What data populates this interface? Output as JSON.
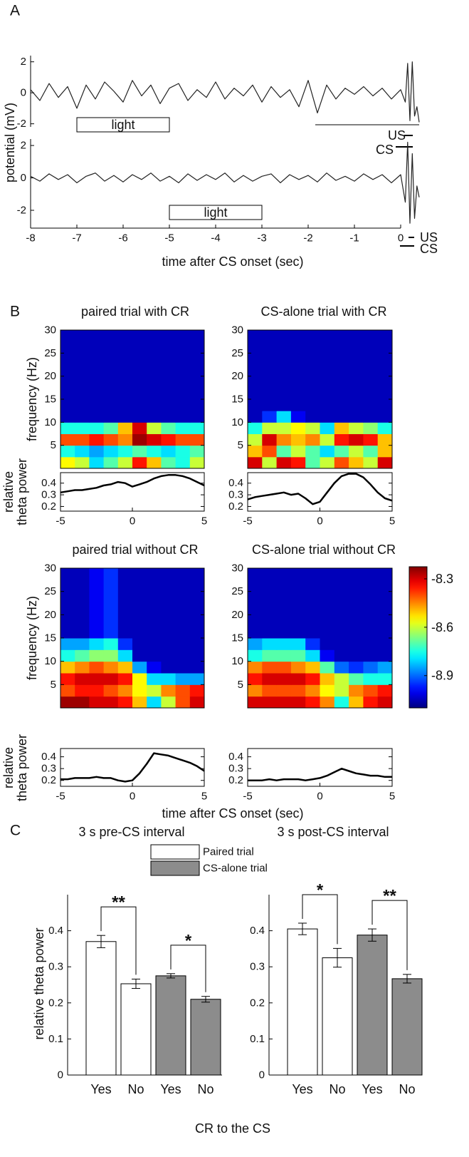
{
  "panel_labels": [
    "A",
    "B",
    "C"
  ],
  "chart_data": [
    {
      "type": "line",
      "ylabel": "potential (mV)",
      "x": [
        -8,
        -7.8,
        -7.6,
        -7.4,
        -7.2,
        -7,
        -6.8,
        -6.6,
        -6.4,
        -6.2,
        -6,
        -5.8,
        -5.6,
        -5.4,
        -5.2,
        -5,
        -4.8,
        -4.6,
        -4.4,
        -4.2,
        -4,
        -3.8,
        -3.6,
        -3.4,
        -3.2,
        -3,
        -2.8,
        -2.6,
        -2.4,
        -2.2,
        -2,
        -1.8,
        -1.6,
        -1.4,
        -1.2,
        -1,
        -0.8,
        -0.6,
        -0.4,
        -0.2,
        0,
        0.1,
        0.15,
        0.2,
        0.25,
        0.3,
        0.35,
        0.4
      ],
      "values": [
        0.2,
        -0.5,
        0.6,
        -0.3,
        0.4,
        -1.0,
        0.5,
        -0.4,
        0.7,
        0.1,
        -0.6,
        0.8,
        -0.2,
        0.5,
        -0.7,
        0.3,
        0.6,
        -0.5,
        0.2,
        -0.3,
        0.7,
        -0.4,
        0.3,
        -0.2,
        0.5,
        -0.6,
        0.4,
        -0.3,
        0.2,
        -0.9,
        0.8,
        -1.3,
        0.5,
        -0.4,
        0.3,
        -0.1,
        0.4,
        -0.2,
        0.3,
        -0.4,
        0.2,
        -0.6,
        1.9,
        -1.8,
        2.0,
        -1.5,
        -0.9,
        -1.9
      ],
      "color": "#222222",
      "xlim": [
        -8,
        0.4
      ],
      "ylim": [
        -2.2,
        2.4
      ],
      "yticks": [
        -2,
        0,
        2
      ],
      "stimulus": {
        "label": "light",
        "start": -7,
        "end": -5
      },
      "markers": [
        "US",
        "CS"
      ]
    },
    {
      "type": "line",
      "xlabel": "time after CS onset (sec)",
      "x": [
        -8,
        -7.8,
        -7.6,
        -7.4,
        -7.2,
        -7,
        -6.8,
        -6.6,
        -6.4,
        -6.2,
        -6,
        -5.8,
        -5.6,
        -5.4,
        -5.2,
        -5,
        -4.8,
        -4.6,
        -4.4,
        -4.2,
        -4,
        -3.8,
        -3.6,
        -3.4,
        -3.2,
        -3,
        -2.8,
        -2.6,
        -2.4,
        -2.2,
        -2,
        -1.8,
        -1.6,
        -1.4,
        -1.2,
        -1,
        -0.8,
        -0.6,
        -0.4,
        -0.2,
        0,
        0.1,
        0.15,
        0.2,
        0.25,
        0.3,
        0.35,
        0.4
      ],
      "values": [
        0.1,
        -0.2,
        0.25,
        -0.1,
        0.2,
        -0.3,
        0.1,
        0.3,
        -0.2,
        0.15,
        -0.25,
        0.2,
        -0.1,
        0.3,
        -0.2,
        0.1,
        -0.3,
        0.25,
        -0.15,
        0.2,
        -0.1,
        0.3,
        -0.25,
        0.15,
        -0.2,
        0.1,
        0.25,
        -0.3,
        0.2,
        -0.1,
        0.15,
        -0.25,
        0.3,
        -0.15,
        0.1,
        -0.2,
        0.25,
        -0.1,
        0.2,
        -0.3,
        0.2,
        -1.5,
        2.2,
        -2.8,
        1.5,
        -2.5,
        -0.5,
        -1.2
      ],
      "color": "#222222",
      "xlim": [
        -8,
        0.4
      ],
      "ylim": [
        -3.1,
        2.4
      ],
      "yticks": [
        -2,
        0,
        2
      ],
      "xticks": [
        -8,
        -7,
        -6,
        -5,
        -4,
        -3,
        -2,
        -1,
        0
      ],
      "stimulus": {
        "label": "light",
        "start": -5,
        "end": -3
      },
      "markers": [
        "US",
        "CS"
      ]
    },
    {
      "type": "heatmap",
      "title": "paired trial with CR",
      "ylabel": "frequency (Hz)",
      "xbins": [
        -5,
        -4,
        -3,
        -2,
        -1,
        0,
        1,
        2,
        3,
        4,
        5
      ],
      "ybins": [
        0,
        2.5,
        5,
        7.5,
        10,
        12.5,
        15,
        30
      ],
      "yticks": [
        5,
        10,
        15,
        20,
        25,
        30
      ],
      "values": [
        [
          -8.55,
          -8.6,
          -8.8,
          -8.7,
          -8.6,
          -8.35,
          -8.5,
          -8.7,
          -8.75,
          -8.6
        ],
        [
          -8.75,
          -8.8,
          -8.85,
          -8.8,
          -8.75,
          -8.7,
          -8.75,
          -8.8,
          -8.75,
          -8.7
        ],
        [
          -8.4,
          -8.4,
          -8.35,
          -8.4,
          -8.45,
          -8.25,
          -8.3,
          -8.35,
          -8.4,
          -8.4
        ],
        [
          -8.75,
          -8.75,
          -8.75,
          -8.7,
          -8.5,
          -8.3,
          -8.6,
          -8.7,
          -8.75,
          -8.75
        ],
        [
          -9.05,
          -9.05,
          -9.05,
          -9.05,
          -9.05,
          -9.05,
          -9.05,
          -9.05,
          -9.05,
          -9.05
        ],
        [
          -9.05,
          -9.05,
          -9.05,
          -9.05,
          -9.05,
          -9.05,
          -9.05,
          -9.05,
          -9.05,
          -9.05
        ],
        [
          -9.05,
          -9.05,
          -9.05,
          -9.05,
          -9.05,
          -9.05,
          -9.05,
          -9.05,
          -9.05,
          -9.05
        ]
      ]
    },
    {
      "type": "line",
      "ylabel": [
        "relative",
        "theta power"
      ],
      "x": [
        -5,
        -4.5,
        -4,
        -3.5,
        -3,
        -2.5,
        -2,
        -1.5,
        -1,
        -0.5,
        0,
        0.5,
        1,
        1.5,
        2,
        2.5,
        3,
        3.5,
        4,
        4.5,
        5
      ],
      "values": [
        0.32,
        0.33,
        0.34,
        0.34,
        0.35,
        0.36,
        0.38,
        0.39,
        0.41,
        0.4,
        0.37,
        0.39,
        0.41,
        0.44,
        0.46,
        0.47,
        0.47,
        0.46,
        0.44,
        0.41,
        0.38
      ],
      "color": "#000000",
      "xlim": [
        -5,
        5
      ],
      "xticks": [
        -5,
        0,
        5
      ],
      "ylim": [
        0.16,
        0.49
      ],
      "yticks": [
        0.2,
        0.3,
        0.4
      ]
    },
    {
      "type": "heatmap",
      "title": "CS-alone trial with CR",
      "xbins": [
        -5,
        -4,
        -3,
        -2,
        -1,
        0,
        1,
        2,
        3,
        4,
        5
      ],
      "ybins": [
        0,
        2.5,
        5,
        7.5,
        10,
        12.5,
        15,
        30
      ],
      "yticks": [
        5,
        10,
        15,
        20,
        25,
        30
      ],
      "values": [
        [
          -8.3,
          -8.6,
          -8.3,
          -8.35,
          -8.7,
          -8.6,
          -8.4,
          -8.5,
          -8.6,
          -8.3
        ],
        [
          -8.5,
          -8.4,
          -8.7,
          -8.6,
          -8.7,
          -8.8,
          -8.7,
          -8.6,
          -8.7,
          -8.5
        ],
        [
          -8.6,
          -8.3,
          -8.45,
          -8.5,
          -8.45,
          -8.6,
          -8.35,
          -8.3,
          -8.35,
          -8.5
        ],
        [
          -8.75,
          -8.6,
          -8.6,
          -8.55,
          -8.6,
          -8.8,
          -8.5,
          -8.6,
          -8.65,
          -8.75
        ],
        [
          -9.05,
          -8.95,
          -8.8,
          -9.0,
          -9.05,
          -9.05,
          -9.05,
          -9.05,
          -9.05,
          -9.05
        ],
        [
          -9.05,
          -9.05,
          -9.05,
          -9.05,
          -9.05,
          -9.05,
          -9.05,
          -9.05,
          -9.05,
          -9.05
        ],
        [
          -9.05,
          -9.05,
          -9.05,
          -9.05,
          -9.05,
          -9.05,
          -9.05,
          -9.05,
          -9.05,
          -9.05
        ]
      ]
    },
    {
      "type": "line",
      "x": [
        -5,
        -4.5,
        -4,
        -3.5,
        -3,
        -2.5,
        -2,
        -1.5,
        -1,
        -0.5,
        0,
        0.5,
        1,
        1.5,
        2,
        2.5,
        3,
        3.5,
        4,
        4.5,
        5
      ],
      "values": [
        0.26,
        0.28,
        0.29,
        0.3,
        0.31,
        0.32,
        0.3,
        0.31,
        0.27,
        0.22,
        0.24,
        0.32,
        0.4,
        0.46,
        0.48,
        0.48,
        0.45,
        0.39,
        0.32,
        0.27,
        0.25
      ],
      "color": "#000000",
      "xlim": [
        -5,
        5
      ],
      "xticks": [
        -5,
        0,
        5
      ],
      "ylim": [
        0.16,
        0.49
      ],
      "yticks": [
        0.2,
        0.3,
        0.4
      ]
    },
    {
      "type": "heatmap",
      "title": "paired trial without CR",
      "ylabel": "frequency (Hz)",
      "xbins": [
        -5,
        -4,
        -3,
        -2,
        -1,
        0,
        1,
        2,
        3,
        4,
        5
      ],
      "ybins": [
        0,
        2.5,
        5,
        7.5,
        10,
        12.5,
        15,
        30
      ],
      "yticks": [
        5,
        10,
        15,
        20,
        25,
        30
      ],
      "values": [
        [
          -8.25,
          -8.25,
          -8.3,
          -8.3,
          -8.35,
          -8.5,
          -8.8,
          -8.6,
          -8.4,
          -8.3
        ],
        [
          -8.4,
          -8.35,
          -8.35,
          -8.4,
          -8.45,
          -8.55,
          -8.6,
          -8.45,
          -8.4,
          -8.35
        ],
        [
          -8.35,
          -8.3,
          -8.3,
          -8.3,
          -8.35,
          -8.55,
          -8.8,
          -8.8,
          -8.85,
          -8.85
        ],
        [
          -8.5,
          -8.45,
          -8.4,
          -8.45,
          -8.5,
          -8.85,
          -9.0,
          -9.05,
          -9.05,
          -9.05
        ],
        [
          -8.75,
          -8.7,
          -8.65,
          -8.65,
          -8.8,
          -9.05,
          -9.05,
          -9.05,
          -9.05,
          -9.05
        ],
        [
          -8.85,
          -8.85,
          -8.8,
          -8.75,
          -8.95,
          -9.05,
          -9.05,
          -9.05,
          -9.05,
          -9.05
        ],
        [
          -9.05,
          -9.05,
          -9.0,
          -8.95,
          -9.05,
          -9.05,
          -9.05,
          -9.05,
          -9.05,
          -9.05
        ]
      ]
    },
    {
      "type": "line",
      "ylabel": [
        "relative",
        "theta power"
      ],
      "x": [
        -5,
        -4.5,
        -4,
        -3.5,
        -3,
        -2.5,
        -2,
        -1.5,
        -1,
        -0.5,
        0,
        0.5,
        1,
        1.5,
        2,
        2.5,
        3,
        3.5,
        4,
        4.5,
        5
      ],
      "values": [
        0.21,
        0.21,
        0.22,
        0.22,
        0.22,
        0.23,
        0.22,
        0.22,
        0.2,
        0.19,
        0.2,
        0.26,
        0.34,
        0.43,
        0.42,
        0.41,
        0.39,
        0.37,
        0.35,
        0.32,
        0.28
      ],
      "color": "#000000",
      "xlim": [
        -5,
        5
      ],
      "xticks": [
        -5,
        0,
        5
      ],
      "ylim": [
        0.15,
        0.47
      ],
      "yticks": [
        0.2,
        0.3,
        0.4
      ]
    },
    {
      "type": "heatmap",
      "title": "CS-alone trial without CR",
      "xbins": [
        -5,
        -4,
        -3,
        -2,
        -1,
        0,
        1,
        2,
        3,
        4,
        5
      ],
      "ybins": [
        0,
        2.5,
        5,
        7.5,
        10,
        12.5,
        15,
        30
      ],
      "yticks": [
        5,
        10,
        15,
        20,
        25,
        30
      ],
      "values": [
        [
          -8.3,
          -8.3,
          -8.3,
          -8.3,
          -8.35,
          -8.45,
          -8.75,
          -8.5,
          -8.35,
          -8.3
        ],
        [
          -8.45,
          -8.4,
          -8.4,
          -8.4,
          -8.45,
          -8.55,
          -8.6,
          -8.45,
          -8.4,
          -8.35
        ],
        [
          -8.35,
          -8.3,
          -8.3,
          -8.3,
          -8.35,
          -8.5,
          -8.6,
          -8.7,
          -8.75,
          -8.75
        ],
        [
          -8.45,
          -8.4,
          -8.4,
          -8.45,
          -8.5,
          -8.7,
          -8.9,
          -8.95,
          -8.9,
          -8.85
        ],
        [
          -8.75,
          -8.7,
          -8.7,
          -8.7,
          -8.8,
          -9.0,
          -9.05,
          -9.05,
          -9.05,
          -9.05
        ],
        [
          -8.85,
          -8.8,
          -8.8,
          -8.8,
          -8.95,
          -9.05,
          -9.05,
          -9.05,
          -9.05,
          -9.05
        ],
        [
          -9.05,
          -9.05,
          -9.05,
          -9.05,
          -9.05,
          -9.05,
          -9.05,
          -9.05,
          -9.05,
          -9.05
        ]
      ]
    },
    {
      "type": "line",
      "xlabel": "time after CS onset (sec)",
      "x": [
        -5,
        -4.5,
        -4,
        -3.5,
        -3,
        -2.5,
        -2,
        -1.5,
        -1,
        -0.5,
        0,
        0.5,
        1,
        1.5,
        2,
        2.5,
        3,
        3.5,
        4,
        4.5,
        5
      ],
      "values": [
        0.2,
        0.2,
        0.2,
        0.21,
        0.2,
        0.21,
        0.21,
        0.21,
        0.2,
        0.21,
        0.22,
        0.24,
        0.27,
        0.3,
        0.28,
        0.26,
        0.25,
        0.24,
        0.24,
        0.23,
        0.23
      ],
      "color": "#000000",
      "xlim": [
        -5,
        5
      ],
      "xticks": [
        -5,
        0,
        5
      ],
      "ylim": [
        0.15,
        0.47
      ],
      "yticks": [
        0.2,
        0.3,
        0.4
      ]
    },
    {
      "type": "colorbar",
      "colormap": "jet",
      "clim": [
        -9.1,
        -8.225
      ],
      "ticks": [
        -8.9,
        -8.6,
        -8.3
      ]
    },
    {
      "type": "bar",
      "title": "3 s pre-CS interval",
      "ylabel": "relative theta power",
      "categories": [
        "Yes",
        "No",
        "Yes",
        "No"
      ],
      "series": [
        {
          "name": "Paired trial",
          "color": "#ffffff",
          "values": [
            0.37,
            0.253,
            null,
            null
          ],
          "errors": [
            0.017,
            0.013,
            null,
            null
          ]
        },
        {
          "name": "CS-alone trial",
          "color": "#8c8c8c",
          "values": [
            null,
            null,
            0.275,
            0.21
          ],
          "errors": [
            null,
            null,
            0.006,
            0.008
          ]
        }
      ],
      "ylim": [
        0,
        0.5
      ],
      "yticks": [
        0,
        0.1,
        0.2,
        0.3,
        0.4
      ],
      "significance": [
        {
          "label": "**",
          "from": 0,
          "to": 1
        },
        {
          "label": "*",
          "from": 2,
          "to": 3
        }
      ]
    },
    {
      "type": "bar",
      "title": "3 s post-CS interval",
      "xlabel": "CR to the CS",
      "categories": [
        "Yes",
        "No",
        "Yes",
        "No"
      ],
      "series": [
        {
          "color": "#ffffff",
          "values": [
            0.405,
            0.325,
            null,
            null
          ],
          "errors": [
            0.016,
            0.026,
            null,
            null
          ]
        },
        {
          "color": "#8c8c8c",
          "values": [
            null,
            null,
            0.388,
            0.267
          ],
          "errors": [
            null,
            null,
            0.017,
            0.012
          ]
        }
      ],
      "ylim": [
        0,
        0.5
      ],
      "yticks": [
        0,
        0.1,
        0.2,
        0.3,
        0.4
      ],
      "significance": [
        {
          "label": "*",
          "from": 0,
          "to": 1
        },
        {
          "label": "**",
          "from": 2,
          "to": 3
        }
      ]
    }
  ]
}
